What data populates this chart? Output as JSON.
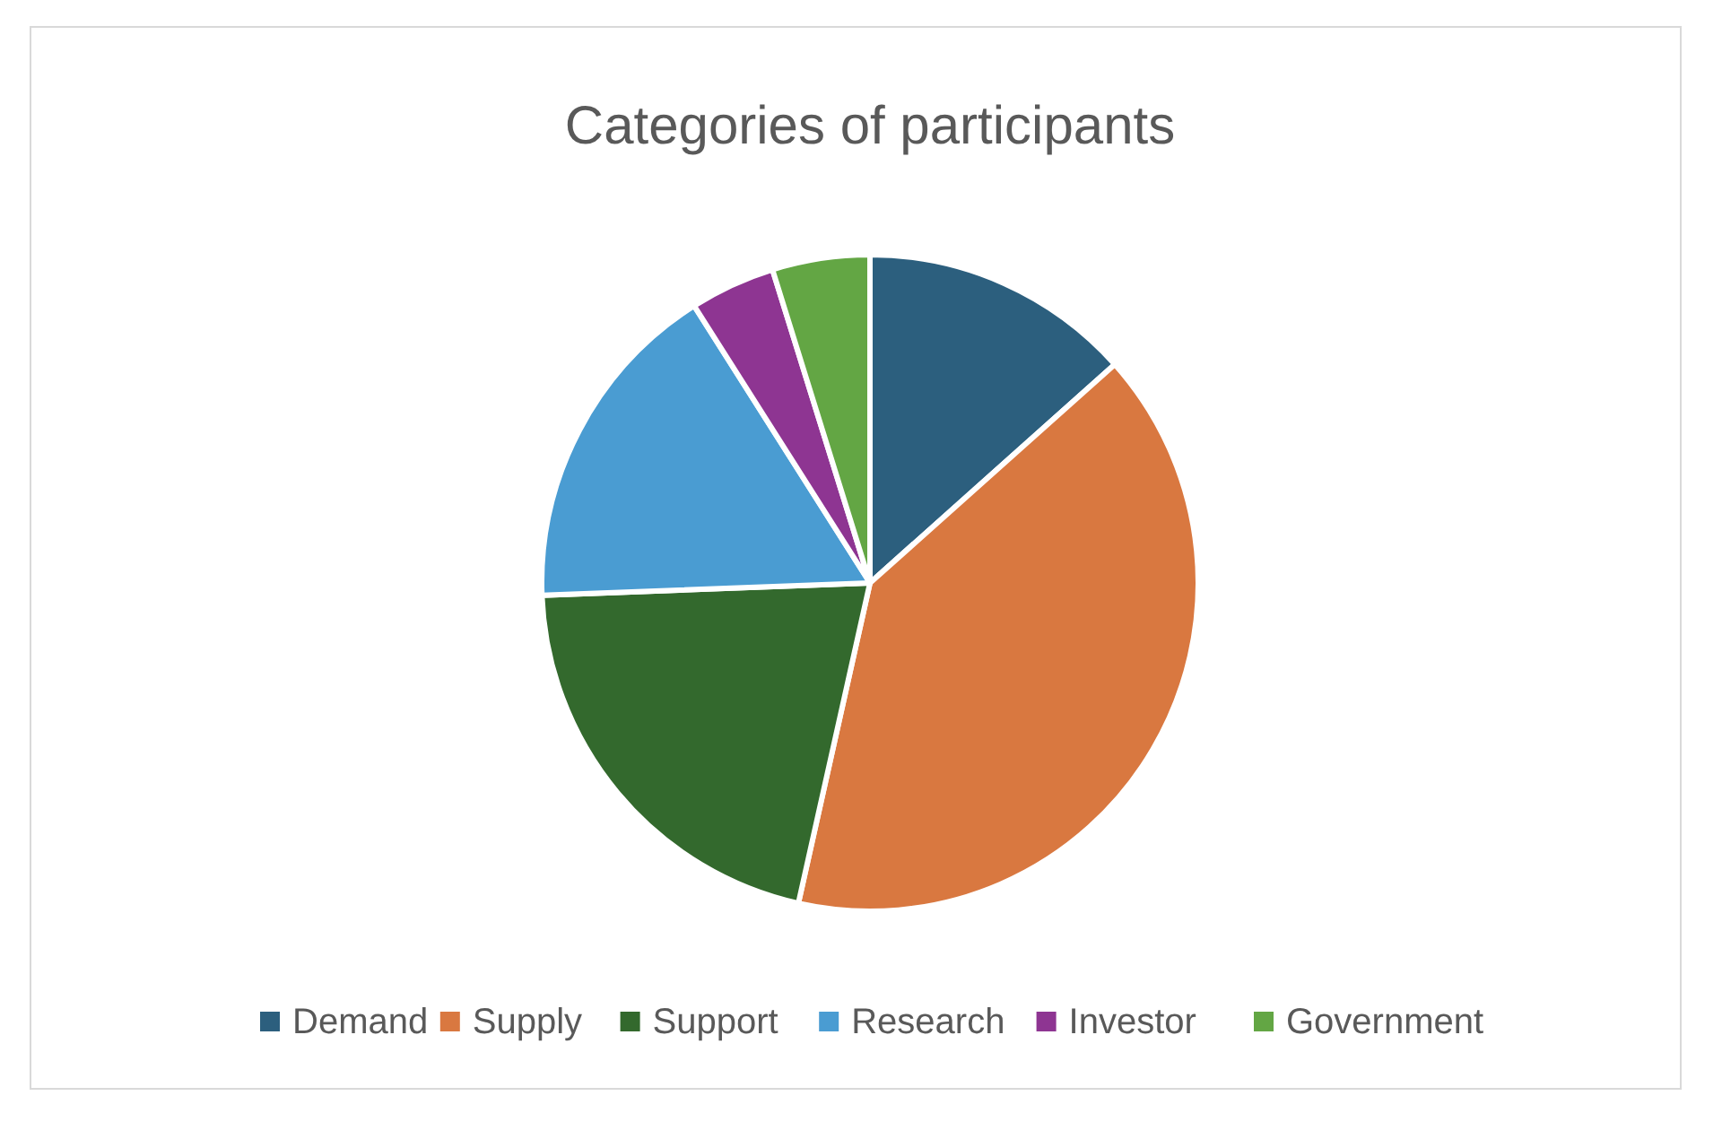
{
  "chart_data": {
    "type": "pie",
    "title": "Categories of participants",
    "categories": [
      "Demand",
      "Supply",
      "Support",
      "Research",
      "Investor",
      "Government"
    ],
    "values": [
      13.4,
      40.1,
      20.9,
      16.6,
      4.2,
      4.8
    ],
    "colors": [
      "#2c5f7e",
      "#d97840",
      "#33692d",
      "#4a9cd2",
      "#8e3592",
      "#63a644"
    ],
    "legend": "bottom"
  }
}
